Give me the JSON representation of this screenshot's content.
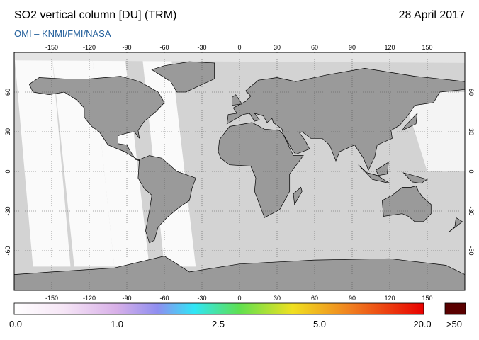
{
  "header": {
    "title": "SO2 vertical column [DU] (TRM)",
    "date": "28 April 2017",
    "credit": "OMI  –  KNMI/FMI/NASA"
  },
  "map": {
    "lon_ticks": [
      -150,
      -120,
      -90,
      -60,
      -30,
      0,
      30,
      60,
      90,
      120,
      150
    ],
    "lat_ticks": [
      60,
      30,
      0,
      -30,
      -60
    ]
  },
  "colorbar": {
    "labels": [
      "0.0",
      "1.0",
      "2.5",
      "5.0",
      "20.0",
      ">50"
    ]
  }
}
